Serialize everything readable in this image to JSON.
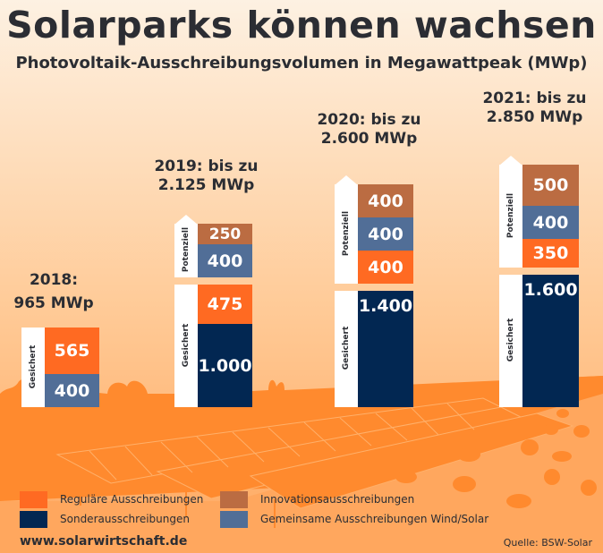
{
  "header": {
    "title": "Solarparks können wachsen",
    "subtitle": "Photovoltaik-Ausschreibungsvolumen in Megawattpeak (MWp)"
  },
  "colors": {
    "regular": "#ff6a22",
    "special": "#022752",
    "innovation": "#bb6c42",
    "joint": "#516e97",
    "text": "#2b2d33",
    "bg_top": "#fcefdc",
    "bg_bottom": "#ffa75e",
    "landscape": "#ff8a2e"
  },
  "chart_data": {
    "type": "bar",
    "stacked": true,
    "title": "Solarparks können wachsen",
    "subtitle": "Photovoltaik-Ausschreibungsvolumen in Megawattpeak (MWp)",
    "unit": "MWp",
    "categories": [
      "2018",
      "2019",
      "2020",
      "2021"
    ],
    "year_labels": [
      {
        "line1": "2018:",
        "line2": "965 MWp"
      },
      {
        "line1": "2019: bis zu",
        "line2": "2.125 MWp"
      },
      {
        "line1": "2020: bis zu",
        "line2": "2.600 MWp"
      },
      {
        "line1": "2021: bis zu",
        "line2": "2.850 MWp"
      }
    ],
    "totals": [
      965,
      2125,
      2600,
      2850
    ],
    "group_labels": {
      "secured": "Gesichert",
      "potential": "Potenziell"
    },
    "bars": [
      {
        "year": "2018",
        "secured": [
          {
            "series": "joint",
            "value": 400,
            "label": "400"
          },
          {
            "series": "regular",
            "value": 565,
            "label": "565"
          }
        ],
        "potential": []
      },
      {
        "year": "2019",
        "secured": [
          {
            "series": "special",
            "value": 1000,
            "label": "1.000"
          },
          {
            "series": "regular",
            "value": 475,
            "label": "475"
          }
        ],
        "potential": [
          {
            "series": "joint",
            "value": 400,
            "label": "400"
          },
          {
            "series": "innovation",
            "value": 250,
            "label": "250"
          }
        ]
      },
      {
        "year": "2020",
        "secured": [
          {
            "series": "special",
            "value": 1400,
            "label": "1.400"
          }
        ],
        "potential": [
          {
            "series": "regular",
            "value": 400,
            "label": "400"
          },
          {
            "series": "joint",
            "value": 400,
            "label": "400"
          },
          {
            "series": "innovation",
            "value": 400,
            "label": "400"
          }
        ]
      },
      {
        "year": "2021",
        "secured": [
          {
            "series": "special",
            "value": 1600,
            "label": "1.600"
          }
        ],
        "potential": [
          {
            "series": "regular",
            "value": 350,
            "label": "350"
          },
          {
            "series": "joint",
            "value": 400,
            "label": "400"
          },
          {
            "series": "innovation",
            "value": 500,
            "label": "500"
          }
        ]
      }
    ],
    "legend": [
      {
        "series": "regular",
        "label": "Reguläre Ausschreibungen"
      },
      {
        "series": "special",
        "label": "Sonderausschreibungen"
      },
      {
        "series": "innovation",
        "label": "Innovationsausschreibungen"
      },
      {
        "series": "joint",
        "label": "Gemeinsame Ausschreibungen Wind/Solar"
      }
    ],
    "legend_position": "bottom-left",
    "grid": false
  },
  "footer": {
    "website": "www.solarwirtschaft.de",
    "source": "Quelle: BSW-Solar"
  }
}
